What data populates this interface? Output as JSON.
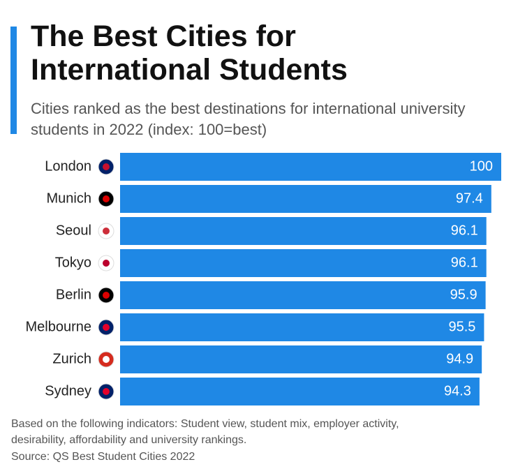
{
  "chart_data": {
    "type": "bar",
    "orientation": "horizontal",
    "title": "The Best Cities for International Students",
    "subtitle": "Cities ranked as the best destinations for international university students in 2022 (index: 100=best)",
    "categories": [
      "London",
      "Munich",
      "Seoul",
      "Tokyo",
      "Berlin",
      "Melbourne",
      "Zurich",
      "Sydney"
    ],
    "values": [
      100,
      97.4,
      96.1,
      96.1,
      95.9,
      95.5,
      94.9,
      94.3
    ],
    "color": "#1f88e5",
    "note": "Based on the following indicators: Student view, student mix, employer activity, desirability, affordability and university rankings.",
    "source": "Source: QS Best Student Cities 2022"
  }
}
